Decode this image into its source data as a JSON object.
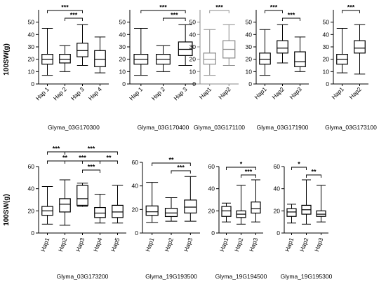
{
  "figure": {
    "ylabel": "100SW(g)"
  },
  "chart_data": [
    {
      "type": "boxplot",
      "title": "Glyma_03G170300",
      "ylabel": "100SW(g)",
      "ylim": [
        0,
        60
      ],
      "yticks": [
        0,
        10,
        20,
        30,
        40,
        50
      ],
      "categories": [
        "Hap 1",
        "Hap 2",
        "Hap 3",
        "Hap 4"
      ],
      "boxes": [
        {
          "min": 7,
          "q1": 16,
          "median": 20,
          "q3": 24,
          "max": 45
        },
        {
          "min": 10,
          "q1": 17,
          "median": 20,
          "q3": 24,
          "max": 31
        },
        {
          "min": 15,
          "q1": 22,
          "median": 27,
          "q3": 33,
          "max": 48
        },
        {
          "min": 9,
          "q1": 14,
          "median": 20,
          "q3": 27,
          "max": 38
        }
      ],
      "significance": [
        {
          "from": 0,
          "to": 2,
          "label": "***"
        },
        {
          "from": 1,
          "to": 2,
          "label": "***"
        }
      ],
      "color": "#000000"
    },
    {
      "type": "boxplot",
      "title": "Glyma_03G170400",
      "ylim": [
        0,
        60
      ],
      "yticks": [
        0,
        10,
        20,
        30,
        40,
        50
      ],
      "categories": [
        "Hap 1",
        "Hap 2",
        "Hap 3"
      ],
      "boxes": [
        {
          "min": 7,
          "q1": 16,
          "median": 20,
          "q3": 24,
          "max": 45
        },
        {
          "min": 10,
          "q1": 16,
          "median": 20,
          "q3": 24,
          "max": 31
        },
        {
          "min": 15,
          "q1": 23,
          "median": 28,
          "q3": 34,
          "max": 48
        }
      ],
      "significance": [
        {
          "from": 0,
          "to": 2,
          "label": "***"
        },
        {
          "from": 1,
          "to": 2,
          "label": "***"
        }
      ],
      "color": "#000000"
    },
    {
      "type": "boxplot",
      "title": "Glyma_03G171100",
      "ylim": [
        0,
        60
      ],
      "yticks": [
        0,
        10,
        20,
        30,
        40,
        50
      ],
      "categories": [
        "Hap1",
        "Hap2"
      ],
      "boxes": [
        {
          "min": 7,
          "q1": 16,
          "median": 20,
          "q3": 25,
          "max": 44
        },
        {
          "min": 15,
          "q1": 21,
          "median": 28,
          "q3": 35,
          "max": 48
        }
      ],
      "significance": [
        {
          "from": 0,
          "to": 1,
          "label": "***"
        }
      ],
      "color": "#8a8a8a"
    },
    {
      "type": "boxplot",
      "title": "Glyma_03G171900",
      "ylim": [
        0,
        60
      ],
      "yticks": [
        0,
        10,
        20,
        30,
        40,
        50
      ],
      "categories": [
        "Hap1",
        "Hap2",
        "Hap3"
      ],
      "boxes": [
        {
          "min": 7,
          "q1": 16,
          "median": 20,
          "q3": 25,
          "max": 44
        },
        {
          "min": 17,
          "q1": 25,
          "median": 29,
          "q3": 35,
          "max": 48
        },
        {
          "min": 10,
          "q1": 14,
          "median": 18,
          "q3": 26,
          "max": 38
        }
      ],
      "significance": [
        {
          "from": 0,
          "to": 1,
          "label": "***"
        },
        {
          "from": 1,
          "to": 2,
          "label": "***"
        }
      ],
      "color": "#000000"
    },
    {
      "type": "boxplot",
      "title": "Glyma_03G173100",
      "ylim": [
        0,
        60
      ],
      "yticks": [
        0,
        10,
        20,
        30,
        40,
        50
      ],
      "categories": [
        "Hap1",
        "Hap2"
      ],
      "boxes": [
        {
          "min": 9,
          "q1": 16,
          "median": 20,
          "q3": 24,
          "max": 45
        },
        {
          "min": 8,
          "q1": 25,
          "median": 29,
          "q3": 35,
          "max": 48
        }
      ],
      "significance": [
        {
          "from": 0,
          "to": 1,
          "label": "***"
        }
      ],
      "color": "#000000"
    },
    {
      "type": "boxplot",
      "title": "Glyma_03G173200",
      "ylabel": "100SW(g)",
      "ylim": [
        0,
        60
      ],
      "yticks": [
        0,
        20,
        40,
        60
      ],
      "categories": [
        "Hap1",
        "Hap2",
        "Hap3",
        "Hap4",
        "Hap5"
      ],
      "boxes": [
        {
          "min": 8,
          "q1": 16,
          "median": 20,
          "q3": 24,
          "max": 42
        },
        {
          "min": 7,
          "q1": 19,
          "median": 26,
          "q3": 31,
          "max": 48
        },
        {
          "min": 24,
          "q1": 25,
          "median": 31,
          "q3": 43,
          "max": 45
        },
        {
          "min": 9,
          "q1": 14,
          "median": 18,
          "q3": 23,
          "max": 35
        },
        {
          "min": 9,
          "q1": 14,
          "median": 19,
          "q3": 25,
          "max": 43
        }
      ],
      "significance": [
        {
          "from": 0,
          "to": 1,
          "label": "***"
        },
        {
          "from": 1,
          "to": 4,
          "label": "***"
        },
        {
          "from": 1,
          "to": 3,
          "label": "***"
        },
        {
          "from": 0,
          "to": 2,
          "label": "**"
        },
        {
          "from": 3,
          "to": 4,
          "label": "**"
        },
        {
          "from": 2,
          "to": 3,
          "label": "***"
        }
      ],
      "color": "#000000"
    },
    {
      "type": "boxplot",
      "title": "Glyma_19G193500",
      "ylim": [
        0,
        60
      ],
      "yticks": [
        0,
        20,
        40,
        60
      ],
      "categories": [
        "Hap1",
        "Hap2",
        "Hap3"
      ],
      "boxes": [
        {
          "min": 9,
          "q1": 15,
          "median": 18,
          "q3": 23,
          "max": 43
        },
        {
          "min": 10,
          "q1": 14,
          "median": 17,
          "q3": 21,
          "max": 30
        },
        {
          "min": 10,
          "q1": 17,
          "median": 22,
          "q3": 28,
          "max": 48
        }
      ],
      "significance": [
        {
          "from": 0,
          "to": 2,
          "label": "**"
        },
        {
          "from": 1,
          "to": 2,
          "label": "***"
        }
      ],
      "color": "#000000"
    },
    {
      "type": "boxplot",
      "title": "Glyma_19G194500",
      "ylim": [
        0,
        60
      ],
      "yticks": [
        0,
        20,
        40,
        60
      ],
      "categories": [
        "Hap1",
        "Hap2",
        "Hap3"
      ],
      "boxes": [
        {
          "min": 10,
          "q1": 15,
          "median": 20,
          "q3": 24,
          "max": 27
        },
        {
          "min": 8,
          "q1": 14,
          "median": 17,
          "q3": 20,
          "max": 43
        },
        {
          "min": 10,
          "q1": 18,
          "median": 22,
          "q3": 28,
          "max": 48
        }
      ],
      "significance": [
        {
          "from": 0,
          "to": 2,
          "label": "*"
        },
        {
          "from": 1,
          "to": 2,
          "label": "***"
        }
      ],
      "color": "#000000"
    },
    {
      "type": "boxplot",
      "title": "Glyma_19G195300",
      "ylim": [
        0,
        60
      ],
      "yticks": [
        0,
        20,
        40,
        60
      ],
      "categories": [
        "Hap1",
        "Hap2",
        "Hap3"
      ],
      "boxes": [
        {
          "min": 9,
          "q1": 15,
          "median": 19,
          "q3": 22,
          "max": 26
        },
        {
          "min": 8,
          "q1": 17,
          "median": 21,
          "q3": 25,
          "max": 48
        },
        {
          "min": 10,
          "q1": 15,
          "median": 17,
          "q3": 20,
          "max": 43
        }
      ],
      "significance": [
        {
          "from": 0,
          "to": 1,
          "label": "*"
        },
        {
          "from": 1,
          "to": 2,
          "label": "**"
        }
      ],
      "color": "#000000"
    }
  ]
}
